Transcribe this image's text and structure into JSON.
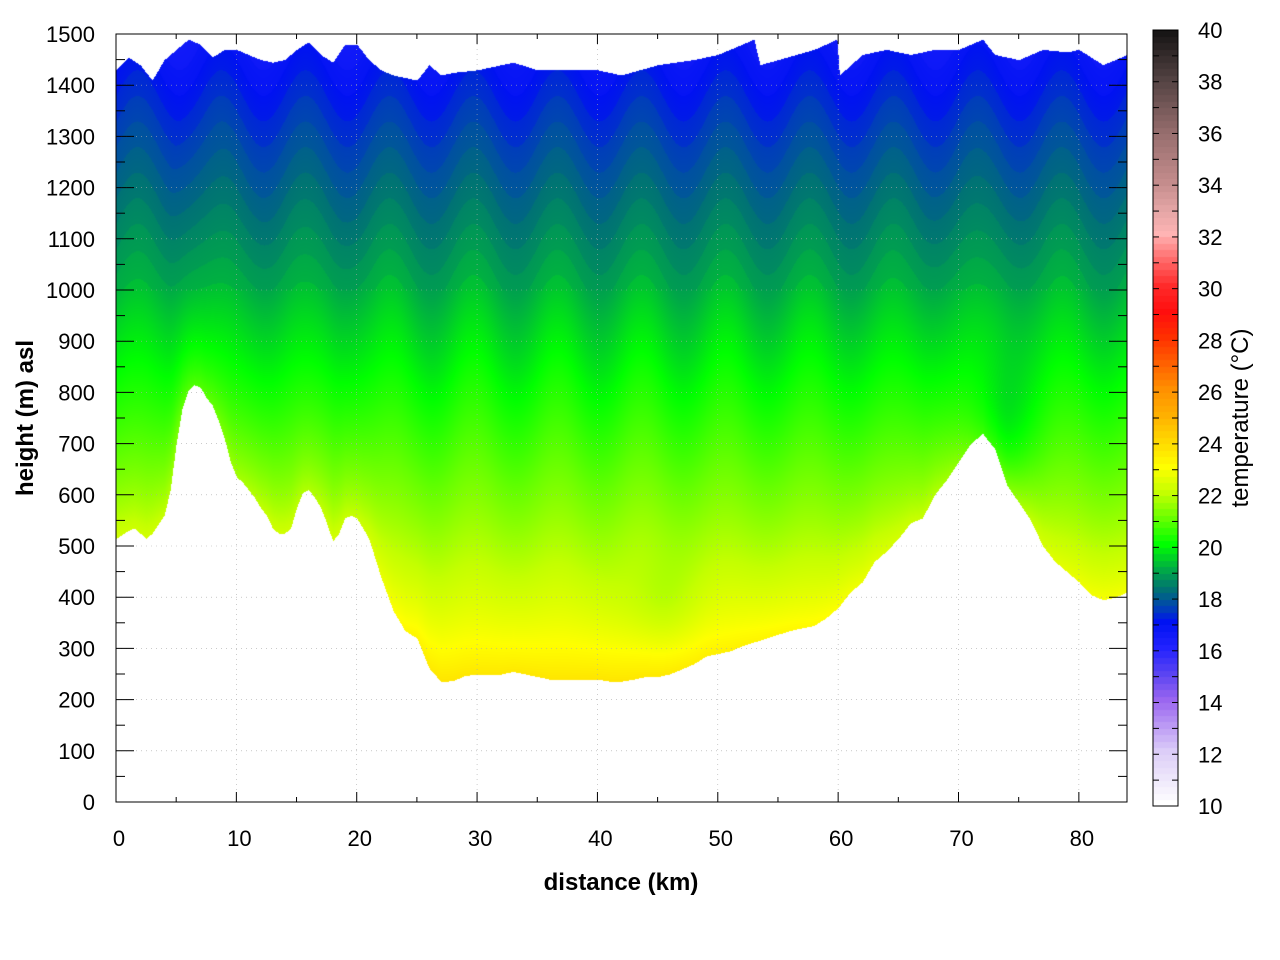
{
  "chart_data": {
    "type": "heatmap",
    "xlabel": "distance (km)",
    "ylabel": "height (m) asl",
    "colorbar_label": "temperature (°C)",
    "xlim": [
      0,
      84
    ],
    "ylim": [
      0,
      1500
    ],
    "clim": [
      10,
      40
    ],
    "x_ticks": [
      "0",
      "10",
      "20",
      "30",
      "40",
      "50",
      "60",
      "70",
      "80"
    ],
    "y_ticks": [
      "0",
      "100",
      "200",
      "300",
      "400",
      "500",
      "600",
      "700",
      "800",
      "900",
      "1000",
      "1100",
      "1200",
      "1300",
      "1400",
      "1500"
    ],
    "colorbar_ticks": [
      "10",
      "12",
      "14",
      "16",
      "18",
      "20",
      "22",
      "24",
      "26",
      "28",
      "30",
      "32",
      "34",
      "36",
      "38",
      "40"
    ],
    "grid": true,
    "colormap": [
      [
        10,
        "#ffffff"
      ],
      [
        12,
        "#dccdf8"
      ],
      [
        14,
        "#9a66f0"
      ],
      [
        15,
        "#5a44f2"
      ],
      [
        16,
        "#2222ff"
      ],
      [
        17,
        "#0012f2"
      ],
      [
        17.6,
        "#0046b0"
      ],
      [
        18.2,
        "#006e78"
      ],
      [
        19,
        "#00a848"
      ],
      [
        20,
        "#00ff00"
      ],
      [
        21,
        "#66ff00"
      ],
      [
        22,
        "#c4ff00"
      ],
      [
        23,
        "#ffff00"
      ],
      [
        24,
        "#ffd800"
      ],
      [
        25,
        "#ffb000"
      ],
      [
        26,
        "#ff9000"
      ],
      [
        27,
        "#ff6000"
      ],
      [
        28,
        "#ff3000"
      ],
      [
        29,
        "#ff0e0e"
      ],
      [
        30,
        "#ff2a2a"
      ],
      [
        31,
        "#ff6a6a"
      ],
      [
        32,
        "#ffb4b4"
      ],
      [
        33,
        "#e2a4a4"
      ],
      [
        34,
        "#c48c8c"
      ],
      [
        36,
        "#946c6c"
      ],
      [
        38,
        "#524242"
      ],
      [
        40,
        "#101010"
      ]
    ],
    "terrain_profile_km_m": [
      [
        0,
        515
      ],
      [
        1,
        530
      ],
      [
        1.5,
        535
      ],
      [
        2,
        525
      ],
      [
        2.5,
        515
      ],
      [
        3,
        525
      ],
      [
        4,
        560
      ],
      [
        4.5,
        610
      ],
      [
        5,
        700
      ],
      [
        5.5,
        770
      ],
      [
        6,
        805
      ],
      [
        6.5,
        815
      ],
      [
        7,
        810
      ],
      [
        7.5,
        790
      ],
      [
        8,
        775
      ],
      [
        8.5,
        745
      ],
      [
        9,
        710
      ],
      [
        9.5,
        665
      ],
      [
        10,
        635
      ],
      [
        10.5,
        625
      ],
      [
        11,
        610
      ],
      [
        11.5,
        595
      ],
      [
        12,
        575
      ],
      [
        12.5,
        560
      ],
      [
        13,
        535
      ],
      [
        13.5,
        525
      ],
      [
        14,
        525
      ],
      [
        14.5,
        535
      ],
      [
        15,
        575
      ],
      [
        15.5,
        605
      ],
      [
        16,
        610
      ],
      [
        16.5,
        595
      ],
      [
        17,
        575
      ],
      [
        17.5,
        545
      ],
      [
        18,
        510
      ],
      [
        18.5,
        525
      ],
      [
        19,
        555
      ],
      [
        19.5,
        560
      ],
      [
        20,
        555
      ],
      [
        21,
        515
      ],
      [
        22,
        440
      ],
      [
        23,
        375
      ],
      [
        24,
        335
      ],
      [
        25,
        320
      ],
      [
        26,
        262
      ],
      [
        27,
        235
      ],
      [
        28,
        237
      ],
      [
        29,
        247
      ],
      [
        30,
        250
      ],
      [
        32,
        250
      ],
      [
        33,
        255
      ],
      [
        34,
        250
      ],
      [
        35,
        245
      ],
      [
        36,
        240
      ],
      [
        40,
        240
      ],
      [
        41,
        236
      ],
      [
        42,
        236
      ],
      [
        43,
        240
      ],
      [
        44,
        245
      ],
      [
        45,
        245
      ],
      [
        46,
        250
      ],
      [
        47,
        260
      ],
      [
        48,
        270
      ],
      [
        49,
        285
      ],
      [
        50,
        290
      ],
      [
        51,
        295
      ],
      [
        52,
        305
      ],
      [
        54,
        320
      ],
      [
        56,
        335
      ],
      [
        58,
        345
      ],
      [
        59,
        360
      ],
      [
        60,
        380
      ],
      [
        61,
        410
      ],
      [
        62,
        430
      ],
      [
        63,
        470
      ],
      [
        64,
        490
      ],
      [
        65,
        515
      ],
      [
        66,
        545
      ],
      [
        67,
        555
      ],
      [
        68,
        600
      ],
      [
        69,
        630
      ],
      [
        70,
        665
      ],
      [
        71,
        700
      ],
      [
        72,
        720
      ],
      [
        73,
        690
      ],
      [
        74,
        620
      ],
      [
        75,
        585
      ],
      [
        76,
        550
      ],
      [
        77,
        500
      ],
      [
        78,
        470
      ],
      [
        79,
        450
      ],
      [
        80,
        430
      ],
      [
        81,
        405
      ],
      [
        82,
        395
      ],
      [
        83,
        400
      ],
      [
        84,
        410
      ]
    ],
    "data_top_km_m": [
      [
        0,
        1430
      ],
      [
        1,
        1455
      ],
      [
        2,
        1440
      ],
      [
        3,
        1410
      ],
      [
        4,
        1450
      ],
      [
        5,
        1470
      ],
      [
        6,
        1490
      ],
      [
        7,
        1480
      ],
      [
        8,
        1455
      ],
      [
        9,
        1470
      ],
      [
        10,
        1470
      ],
      [
        11,
        1460
      ],
      [
        12,
        1450
      ],
      [
        13,
        1445
      ],
      [
        14,
        1450
      ],
      [
        15,
        1470
      ],
      [
        16,
        1485
      ],
      [
        17,
        1460
      ],
      [
        18,
        1445
      ],
      [
        19,
        1480
      ],
      [
        20,
        1480
      ],
      [
        21,
        1450
      ],
      [
        22,
        1430
      ],
      [
        23,
        1420
      ],
      [
        25,
        1410
      ],
      [
        26,
        1440
      ],
      [
        27,
        1420
      ],
      [
        28,
        1425
      ],
      [
        30,
        1430
      ],
      [
        33,
        1445
      ],
      [
        35,
        1430
      ],
      [
        40,
        1430
      ],
      [
        42,
        1420
      ],
      [
        45,
        1440
      ],
      [
        48,
        1450
      ],
      [
        50,
        1460
      ],
      [
        53,
        1490
      ],
      [
        53.5,
        1440
      ],
      [
        55,
        1450
      ],
      [
        58,
        1470
      ],
      [
        59.9,
        1490
      ],
      [
        60.1,
        1420
      ],
      [
        62,
        1460
      ],
      [
        64,
        1470
      ],
      [
        66,
        1460
      ],
      [
        68,
        1470
      ],
      [
        70,
        1470
      ],
      [
        72,
        1490
      ],
      [
        73,
        1460
      ],
      [
        75,
        1450
      ],
      [
        77,
        1470
      ],
      [
        79,
        1465
      ],
      [
        80,
        1470
      ],
      [
        82,
        1440
      ],
      [
        84,
        1460
      ]
    ]
  }
}
